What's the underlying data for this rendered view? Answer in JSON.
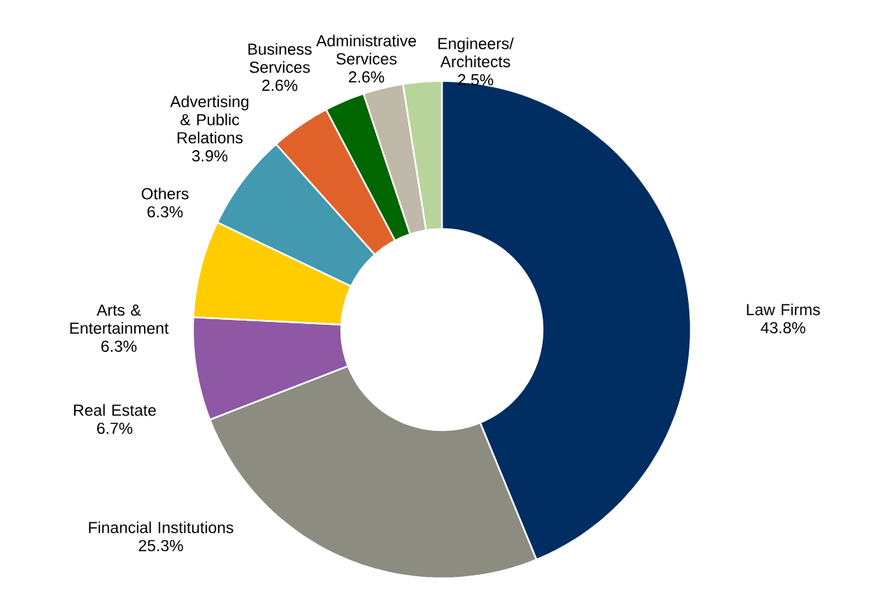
{
  "chart_data": {
    "type": "donut",
    "categories": [
      "Law Firms",
      "Financial Institutions",
      "Real Estate",
      "Arts & Entertainment",
      "Others",
      "Advertising & Public Relations",
      "Business Services",
      "Administrative Services",
      "Engineers/ Architects"
    ],
    "values": [
      43.8,
      25.3,
      6.7,
      6.3,
      6.3,
      3.9,
      2.6,
      2.6,
      2.5
    ],
    "value_labels": [
      "43.8%",
      "25.3%",
      "6.7%",
      "6.3%",
      "6.3%",
      "3.9%",
      "2.6%",
      "2.6%",
      "2.5%"
    ],
    "colors": [
      "#002d62",
      "#8c8c80",
      "#8e58a4",
      "#ffcc00",
      "#4299b0",
      "#e0622a",
      "#006600",
      "#c0b8a8",
      "#b8d49a"
    ]
  }
}
